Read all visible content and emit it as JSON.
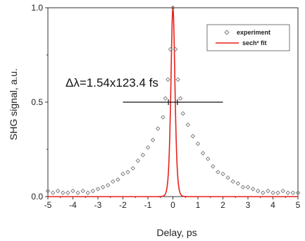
{
  "chart_data": {
    "type": "scatter",
    "xlabel": "Delay, ps",
    "ylabel": "SHG signal, a.u.",
    "xlim": [
      -5,
      5
    ],
    "ylim": [
      0,
      1
    ],
    "x_ticks": [
      "-5",
      "-4",
      "-3",
      "-2",
      "-1",
      "0",
      "1",
      "2",
      "3",
      "4",
      "5"
    ],
    "y_ticks": [
      "0.0",
      "0.5",
      "1.0"
    ],
    "grid": false,
    "legend_position": "top-right",
    "annotation": "Δλ=1.54x123.4 fs",
    "fwhm_marker": {
      "x_start": -2,
      "x_end": 2,
      "y": 0.5
    },
    "series": [
      {
        "name": "experiment",
        "style": "open-diamond",
        "color": "#777777",
        "x": [
          -5.0,
          -4.8,
          -4.6,
          -4.4,
          -4.2,
          -4.0,
          -3.8,
          -3.6,
          -3.4,
          -3.2,
          -3.0,
          -2.8,
          -2.6,
          -2.4,
          -2.2,
          -2.0,
          -1.8,
          -1.6,
          -1.4,
          -1.2,
          -1.0,
          -0.8,
          -0.6,
          -0.4,
          -0.3,
          -0.2,
          -0.1,
          0.0,
          0.1,
          0.2,
          0.3,
          0.4,
          0.6,
          0.8,
          1.0,
          1.2,
          1.4,
          1.6,
          1.8,
          2.0,
          2.2,
          2.4,
          2.6,
          2.8,
          3.0,
          3.2,
          3.4,
          3.6,
          3.8,
          4.0,
          4.2,
          4.4,
          4.6,
          4.8,
          5.0
        ],
        "y": [
          0.03,
          0.02,
          0.03,
          0.02,
          0.02,
          0.03,
          0.02,
          0.03,
          0.02,
          0.03,
          0.04,
          0.05,
          0.06,
          0.08,
          0.09,
          0.12,
          0.13,
          0.15,
          0.19,
          0.22,
          0.26,
          0.3,
          0.36,
          0.42,
          0.52,
          0.62,
          0.78,
          1.0,
          0.78,
          0.62,
          0.52,
          0.44,
          0.38,
          0.32,
          0.28,
          0.23,
          0.2,
          0.16,
          0.13,
          0.12,
          0.1,
          0.08,
          0.07,
          0.05,
          0.05,
          0.04,
          0.03,
          0.02,
          0.03,
          0.02,
          0.02,
          0.03,
          0.02,
          0.02,
          0.02
        ]
      },
      {
        "name": "sech² fit",
        "style": "line",
        "color": "#e8211a",
        "function": "sech2",
        "center": 0,
        "fwhm": 0.19
      }
    ]
  }
}
